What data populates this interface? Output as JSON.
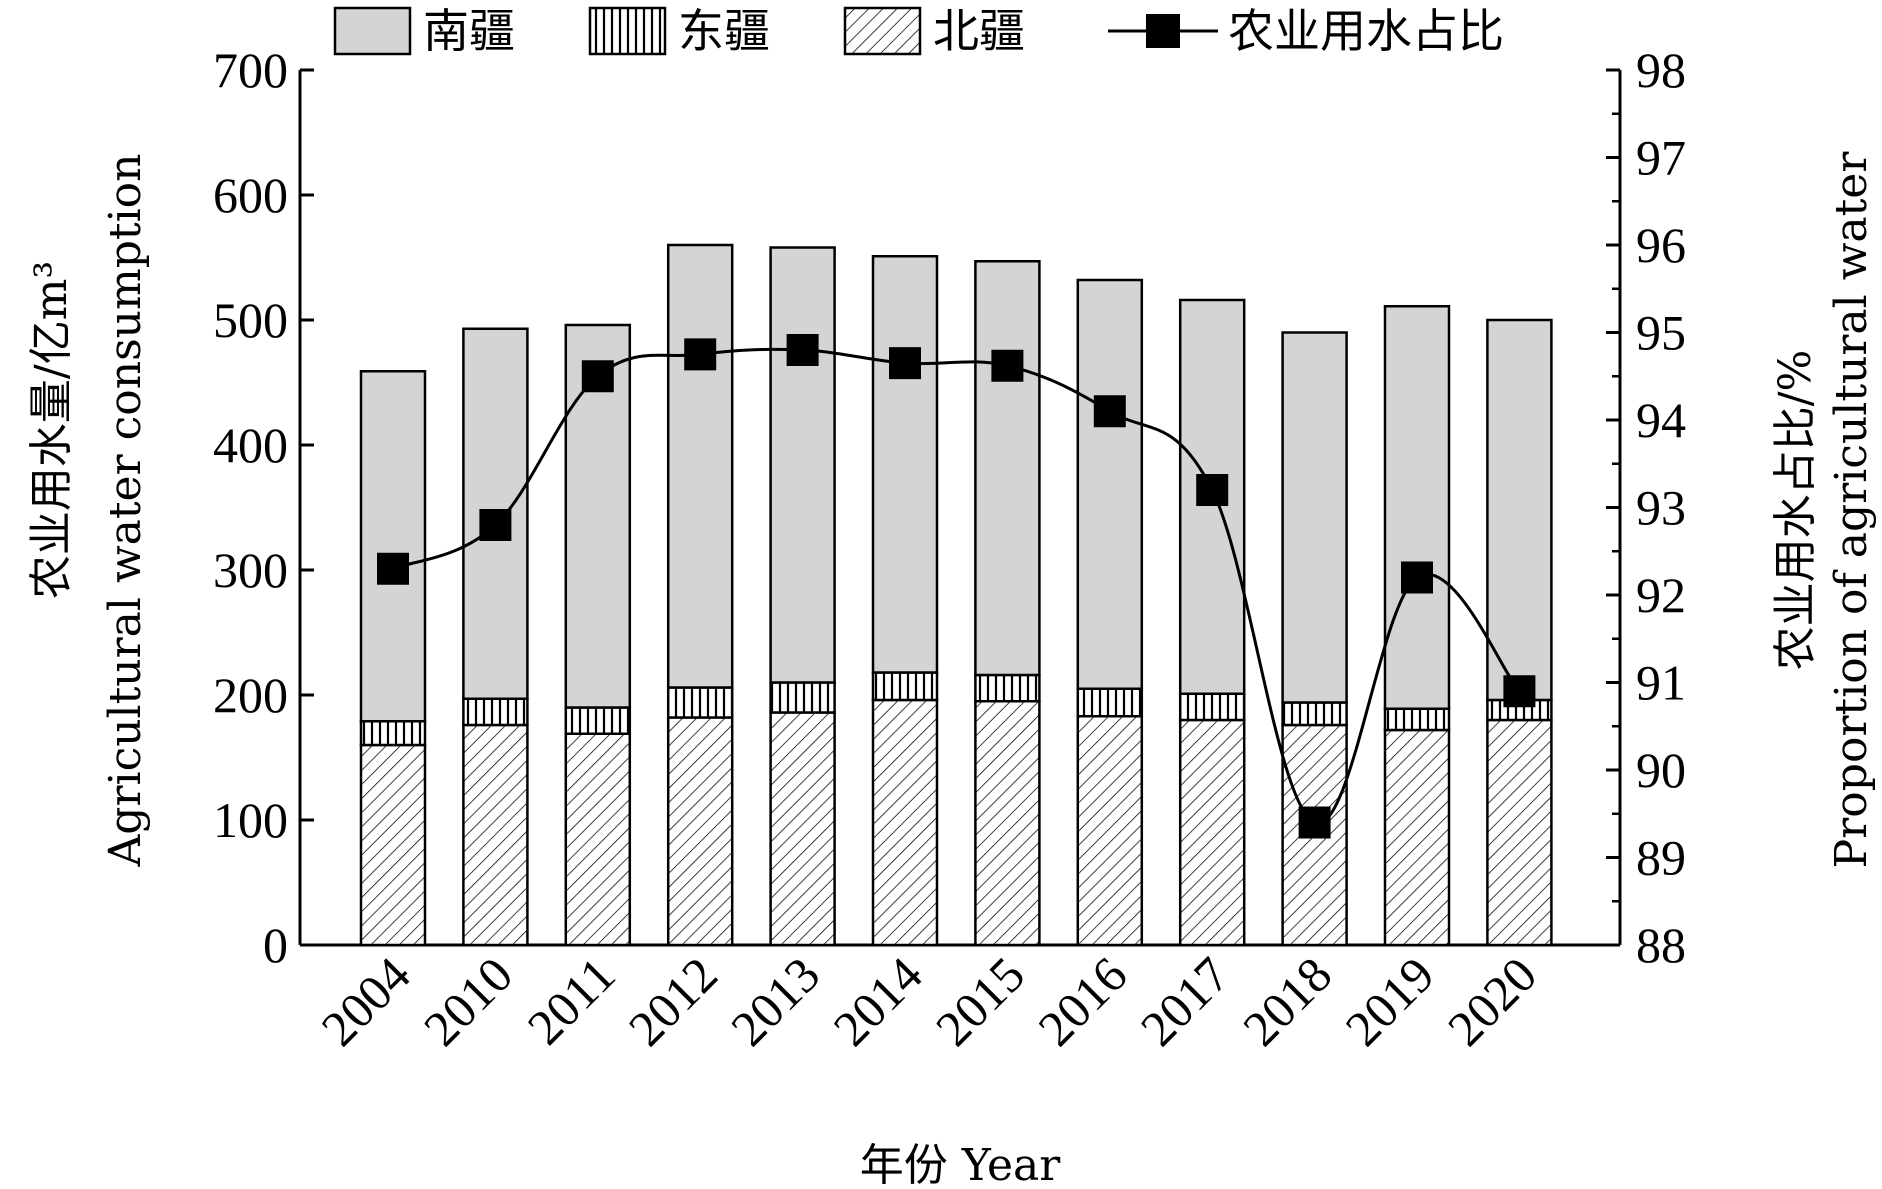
{
  "chart_data": {
    "type": "bar",
    "subtype": "stacked-bar-with-line-dual-axis",
    "categories": [
      "2004",
      "2010",
      "2011",
      "2012",
      "2013",
      "2014",
      "2015",
      "2016",
      "2017",
      "2018",
      "2019",
      "2020"
    ],
    "series": [
      {
        "name": "北疆",
        "kind": "bar",
        "axis": "left",
        "pattern": "diagonal-hatch",
        "values": [
          160,
          176,
          169,
          182,
          186,
          196,
          195,
          183,
          180,
          176,
          172,
          180
        ]
      },
      {
        "name": "东疆",
        "kind": "bar",
        "axis": "left",
        "pattern": "vertical-hatch",
        "values": [
          19,
          21,
          21,
          24,
          24,
          22,
          21,
          22,
          21,
          18,
          17,
          16
        ]
      },
      {
        "name": "南疆",
        "kind": "bar",
        "axis": "left",
        "pattern": "solid-gray",
        "values": [
          280,
          296,
          306,
          354,
          348,
          333,
          331,
          327,
          315,
          296,
          322,
          304
        ]
      },
      {
        "name": "农业用水占比",
        "kind": "line",
        "axis": "right",
        "marker": "square",
        "values": [
          92.3,
          92.8,
          94.5,
          94.75,
          94.8,
          94.65,
          94.62,
          94.1,
          93.2,
          89.4,
          92.2,
          90.9
        ]
      }
    ],
    "left_axis": {
      "label_lines": [
        "Agricultural water consumption",
        "农业用水量/亿m³"
      ],
      "ylim": [
        0,
        700
      ],
      "ticks": [
        "0",
        "100",
        "200",
        "300",
        "400",
        "500",
        "600",
        "700"
      ]
    },
    "right_axis": {
      "label_lines": [
        "农业用水占比/%",
        "Proportion of agricultural water"
      ],
      "ylim": [
        88,
        98
      ],
      "ticks": [
        "88",
        "89",
        "90",
        "91",
        "92",
        "93",
        "94",
        "95",
        "96",
        "97",
        "98"
      ]
    },
    "x_axis": {
      "label": "年份 Year",
      "tick_rotation": -45
    },
    "legend": {
      "placement": "top",
      "entries": [
        "南疆",
        "东疆",
        "北疆",
        "农业用水占比"
      ]
    },
    "grid": false,
    "colors": {
      "bar_fill_south": "#d4d4d4",
      "hatch": "#000000",
      "line": "#000000"
    }
  }
}
